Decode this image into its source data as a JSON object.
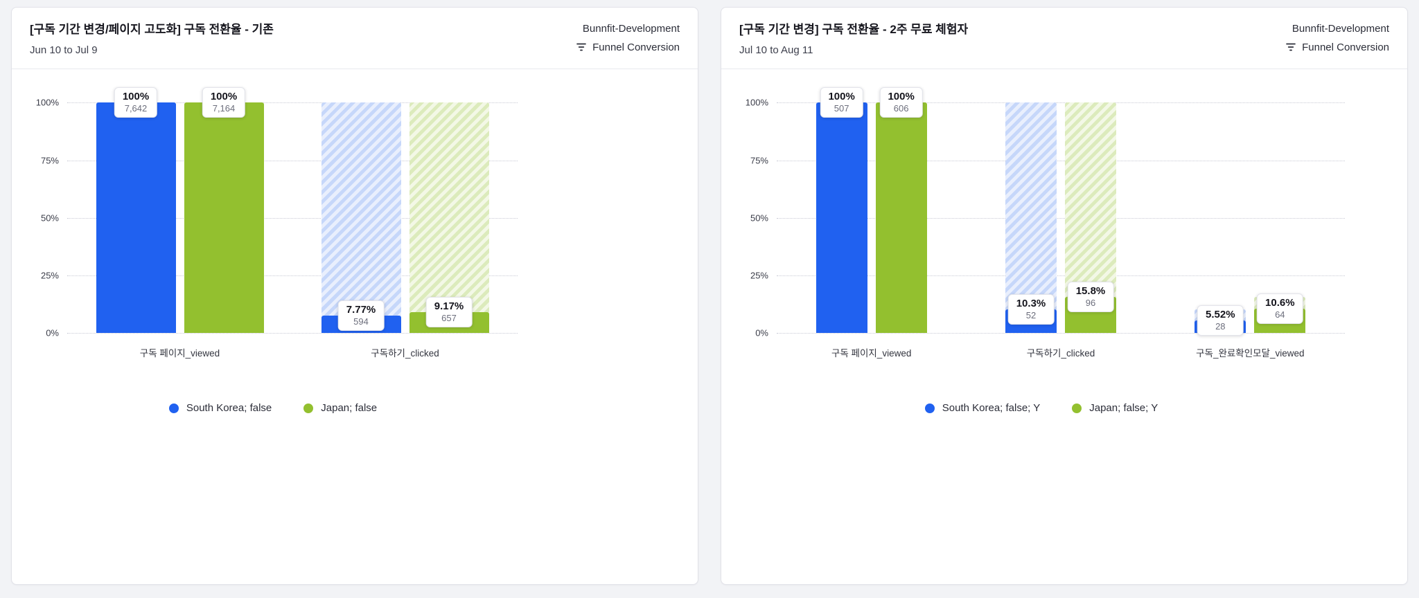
{
  "page": {
    "background": "#f2f3f6"
  },
  "cards": [
    {
      "title": "[구독 기간 변경/페이지 고도화] 구독 전환율 - 기존",
      "date_range": "Jun 10 to Jul 9",
      "project": "Bunnfit-Development",
      "chart_type_label": "Funnel Conversion"
    },
    {
      "title": "[구독 기간 변경] 구독 전환율 - 2주 무료 체험자",
      "date_range": "Jul 10 to Aug 11",
      "project": "Bunnfit-Development",
      "chart_type_label": "Funnel Conversion"
    }
  ],
  "chart_data": [
    {
      "type": "bar",
      "subtype": "funnel-conversion",
      "title": "[구독 기간 변경/페이지 고도화] 구독 전환율 - 기존",
      "categories": [
        "구독 페이지_viewed",
        "구독하기_clicked"
      ],
      "series": [
        {
          "name": "South Korea; false",
          "color": "#2061f0",
          "hatch": [
            "#c6d7fa",
            "#e9effd"
          ],
          "values": [
            100,
            7.77
          ],
          "value_labels": [
            "100%",
            "7.77%"
          ],
          "counts": [
            7642,
            594
          ],
          "count_labels": [
            "7,642",
            "594"
          ]
        },
        {
          "name": "Japan; false",
          "color": "#93c02f",
          "hatch": [
            "#dcebbc",
            "#f3f8e6"
          ],
          "values": [
            100,
            9.17
          ],
          "value_labels": [
            "100%",
            "9.17%"
          ],
          "counts": [
            7164,
            657
          ],
          "count_labels": [
            "7,164",
            "657"
          ]
        }
      ],
      "y_ticks": [
        "100%",
        "75%",
        "50%",
        "25%",
        "0%"
      ],
      "ylim": [
        0,
        100
      ],
      "grid": "dotted-horizontal",
      "legend_position": "bottom-center"
    },
    {
      "type": "bar",
      "subtype": "funnel-conversion",
      "title": "[구독 기간 변경] 구독 전환율 - 2주 무료 체험자",
      "categories": [
        "구독 페이지_viewed",
        "구독하기_clicked",
        "구독_완료확인모달_viewed"
      ],
      "series": [
        {
          "name": "South Korea; false; Y",
          "color": "#2061f0",
          "hatch": [
            "#c6d7fa",
            "#e9effd"
          ],
          "values": [
            100,
            10.3,
            5.52
          ],
          "value_labels": [
            "100%",
            "10.3%",
            "5.52%"
          ],
          "counts": [
            507,
            52,
            28
          ],
          "count_labels": [
            "507",
            "52",
            "28"
          ]
        },
        {
          "name": "Japan; false; Y",
          "color": "#93c02f",
          "hatch": [
            "#dcebbc",
            "#f3f8e6"
          ],
          "values": [
            100,
            15.8,
            10.6
          ],
          "value_labels": [
            "100%",
            "15.8%",
            "10.6%"
          ],
          "counts": [
            606,
            96,
            64
          ],
          "count_labels": [
            "606",
            "96",
            "64"
          ]
        }
      ],
      "y_ticks": [
        "100%",
        "75%",
        "50%",
        "25%",
        "0%"
      ],
      "ylim": [
        0,
        100
      ],
      "grid": "dotted-horizontal",
      "legend_position": "bottom-center"
    }
  ]
}
